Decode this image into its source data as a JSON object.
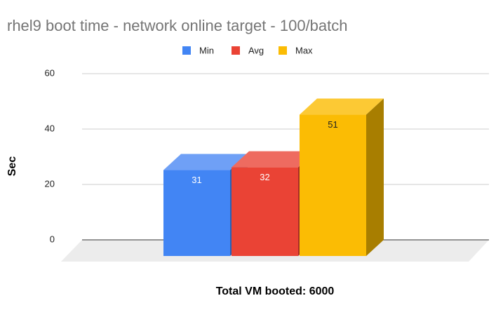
{
  "chart_data": {
    "type": "bar3d",
    "title": "rhel9 boot time - network online target - 100/batch",
    "x_label": "Total VM booted: 6000",
    "y_label": "Sec",
    "categories": [
      null
    ],
    "series": [
      {
        "name": "Min",
        "color": "#4285f4",
        "top_color": "#6fa0f6",
        "side_color": "#2e5fb0",
        "label_color": "#ffffff",
        "values": [
          31
        ]
      },
      {
        "name": "Avg",
        "color": "#ea4335",
        "top_color": "#ee6b60",
        "side_color": "#a82f25",
        "label_color": "#ffffff",
        "values": [
          32
        ]
      },
      {
        "name": "Max",
        "color": "#fbbc04",
        "top_color": "#fcc934",
        "side_color": "#a87e00",
        "label_color": "#222222",
        "values": [
          51
        ]
      }
    ],
    "ylim": [
      0,
      60
    ],
    "yticks": [
      0,
      20,
      40,
      60
    ],
    "grid": true,
    "legend": "top"
  }
}
